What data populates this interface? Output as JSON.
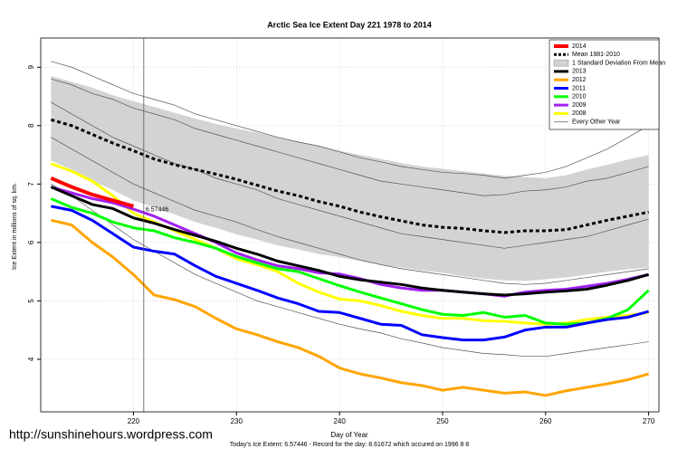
{
  "chart_data": {
    "type": "line",
    "title": "Arctic Sea Ice Extent Day 221 1978 to 2014",
    "xlabel": "Day of Year",
    "ylabel": "Ice Extent in millions of sq. km.",
    "footer": "Today's Ice Extent: 6.57446  - Record for the day: 8.61672 which occured on 1996 8 8",
    "watermark": "http://sunshinehours.wordpress.com",
    "annotation": "6.57446",
    "vline": 221,
    "xlim": [
      211,
      271
    ],
    "ylim": [
      3.1,
      9.5
    ],
    "xticks": [
      220,
      230,
      240,
      250,
      260,
      270
    ],
    "yticks": [
      4,
      5,
      6,
      7,
      8,
      9
    ],
    "grid": true,
    "legend": "top-right",
    "x": [
      212,
      214,
      216,
      218,
      220,
      222,
      224,
      226,
      228,
      230,
      232,
      234,
      236,
      238,
      240,
      242,
      244,
      246,
      248,
      250,
      252,
      254,
      256,
      258,
      260,
      262,
      264,
      266,
      268,
      270
    ],
    "series": [
      {
        "name": "2014",
        "color": "#ff0000",
        "width": 4,
        "values": [
          7.1,
          6.95,
          6.82,
          6.72,
          6.62,
          null,
          null,
          null,
          null,
          null,
          null,
          null,
          null,
          null,
          null,
          null,
          null,
          null,
          null,
          null,
          null,
          null,
          null,
          null,
          null,
          null,
          null,
          null,
          null,
          null
        ]
      },
      {
        "name": "Mean 1981-2010",
        "color": "#000000",
        "width": 3,
        "dash": true,
        "values": [
          8.1,
          8.0,
          7.85,
          7.7,
          7.57,
          7.43,
          7.33,
          7.25,
          7.17,
          7.08,
          6.98,
          6.88,
          6.8,
          6.7,
          6.62,
          6.52,
          6.44,
          6.37,
          6.3,
          6.26,
          6.24,
          6.2,
          6.17,
          6.2,
          6.2,
          6.22,
          6.3,
          6.38,
          6.45,
          6.52
        ]
      },
      {
        "name": "1 Standard Deviation From Mean",
        "color": "#d3d3d3",
        "upper": [
          8.85,
          8.75,
          8.65,
          8.52,
          8.42,
          8.32,
          8.22,
          8.12,
          8.03,
          7.95,
          7.88,
          7.8,
          7.72,
          7.65,
          7.57,
          7.5,
          7.43,
          7.36,
          7.3,
          7.26,
          7.22,
          7.18,
          7.14,
          7.12,
          7.1,
          7.15,
          7.25,
          7.33,
          7.42,
          7.5
        ],
        "lower": [
          7.4,
          7.25,
          7.05,
          6.9,
          6.72,
          6.6,
          6.48,
          6.35,
          6.25,
          6.14,
          6.05,
          5.95,
          5.88,
          5.8,
          5.75,
          5.68,
          5.62,
          5.57,
          5.52,
          5.48,
          5.42,
          5.38,
          5.35,
          5.34,
          5.37,
          5.4,
          5.45,
          5.5,
          5.54,
          5.57
        ]
      },
      {
        "name": "2013",
        "color": "#000000",
        "width": 3,
        "values": [
          6.95,
          6.8,
          6.65,
          6.58,
          6.42,
          6.33,
          6.22,
          6.12,
          6.02,
          5.9,
          5.8,
          5.68,
          5.6,
          5.52,
          5.42,
          5.36,
          5.32,
          5.28,
          5.22,
          5.18,
          5.15,
          5.12,
          5.1,
          5.12,
          5.15,
          5.17,
          5.2,
          5.27,
          5.35,
          5.45
        ]
      },
      {
        "name": "2012",
        "color": "#ffa500",
        "width": 3,
        "values": [
          6.38,
          6.3,
          6.0,
          5.75,
          5.45,
          5.1,
          5.02,
          4.9,
          4.7,
          4.52,
          4.42,
          4.3,
          4.2,
          4.05,
          3.85,
          3.75,
          3.68,
          3.6,
          3.55,
          3.47,
          3.52,
          3.47,
          3.42,
          3.44,
          3.38,
          3.46,
          3.52,
          3.58,
          3.65,
          3.75
        ]
      },
      {
        "name": "2011",
        "color": "#0000ff",
        "width": 3,
        "values": [
          6.62,
          6.55,
          6.38,
          6.15,
          5.92,
          5.85,
          5.8,
          5.6,
          5.42,
          5.3,
          5.18,
          5.05,
          4.95,
          4.82,
          4.8,
          4.7,
          4.6,
          4.58,
          4.42,
          4.37,
          4.33,
          4.33,
          4.38,
          4.5,
          4.55,
          4.55,
          4.62,
          4.68,
          4.72,
          4.82
        ]
      },
      {
        "name": "2010",
        "color": "#00ff00",
        "width": 3,
        "values": [
          6.75,
          6.6,
          6.5,
          6.35,
          6.25,
          6.2,
          6.08,
          6.0,
          5.9,
          5.76,
          5.65,
          5.55,
          5.5,
          5.38,
          5.26,
          5.15,
          5.05,
          4.95,
          4.85,
          4.77,
          4.75,
          4.8,
          4.72,
          4.75,
          4.62,
          4.6,
          4.62,
          4.7,
          4.85,
          5.18
        ]
      },
      {
        "name": "2009",
        "color": "#a020f0",
        "width": 3,
        "values": [
          6.95,
          6.85,
          6.75,
          6.68,
          6.57,
          6.45,
          6.3,
          6.15,
          6.0,
          5.82,
          5.7,
          5.6,
          5.55,
          5.48,
          5.46,
          5.38,
          5.28,
          5.22,
          5.18,
          5.18,
          5.15,
          5.12,
          5.08,
          5.15,
          5.18,
          5.2,
          5.25,
          5.3,
          5.37,
          5.45
        ]
      },
      {
        "name": "2008",
        "color": "#ffff00",
        "width": 3,
        "values": [
          7.35,
          7.22,
          7.05,
          6.8,
          6.5,
          6.35,
          6.2,
          6.05,
          5.9,
          5.72,
          5.62,
          5.5,
          5.3,
          5.15,
          5.03,
          5.0,
          4.92,
          4.82,
          4.75,
          4.7,
          4.7,
          4.66,
          4.65,
          4.62,
          4.6,
          4.62,
          4.68,
          4.72,
          4.75,
          4.8
        ]
      },
      {
        "name": "Every Other Year",
        "color": "#555555",
        "width": 0.7,
        "lines": [
          [
            9.1,
            9.0,
            8.85,
            8.7,
            8.55,
            8.45,
            8.35,
            8.2,
            8.1,
            8.0,
            7.9,
            7.8,
            7.72,
            7.65,
            7.55,
            7.45,
            7.38,
            7.3,
            7.25,
            7.2,
            7.18,
            7.15,
            7.1,
            7.15,
            7.2,
            7.3,
            7.45,
            7.6,
            7.8,
            8.0
          ],
          [
            8.8,
            8.7,
            8.55,
            8.45,
            8.3,
            8.2,
            8.1,
            7.95,
            7.85,
            7.75,
            7.65,
            7.55,
            7.45,
            7.35,
            7.25,
            7.15,
            7.05,
            7.0,
            6.95,
            6.9,
            6.85,
            6.8,
            6.82,
            6.88,
            6.9,
            6.95,
            7.05,
            7.1,
            7.2,
            7.3
          ],
          [
            8.4,
            8.2,
            8.0,
            7.8,
            7.65,
            7.5,
            7.35,
            7.25,
            7.1,
            7.0,
            6.9,
            6.75,
            6.65,
            6.55,
            6.45,
            6.35,
            6.25,
            6.15,
            6.1,
            6.05,
            6.0,
            5.95,
            5.9,
            5.95,
            6.0,
            6.05,
            6.1,
            6.2,
            6.3,
            6.4
          ],
          [
            7.8,
            7.6,
            7.4,
            7.2,
            7.0,
            6.85,
            6.7,
            6.55,
            6.45,
            6.35,
            6.22,
            6.1,
            6.0,
            5.9,
            5.8,
            5.7,
            5.62,
            5.55,
            5.5,
            5.45,
            5.4,
            5.35,
            5.3,
            5.28,
            5.3,
            5.35,
            5.4,
            5.45,
            5.5,
            5.55
          ],
          [
            7.0,
            6.8,
            6.55,
            6.3,
            6.05,
            5.85,
            5.65,
            5.45,
            5.3,
            5.15,
            5.0,
            4.9,
            4.8,
            4.7,
            4.6,
            4.52,
            4.45,
            4.35,
            4.28,
            4.2,
            4.15,
            4.1,
            4.08,
            4.05,
            4.05,
            4.1,
            4.15,
            4.2,
            4.25,
            4.3
          ]
        ]
      }
    ]
  }
}
